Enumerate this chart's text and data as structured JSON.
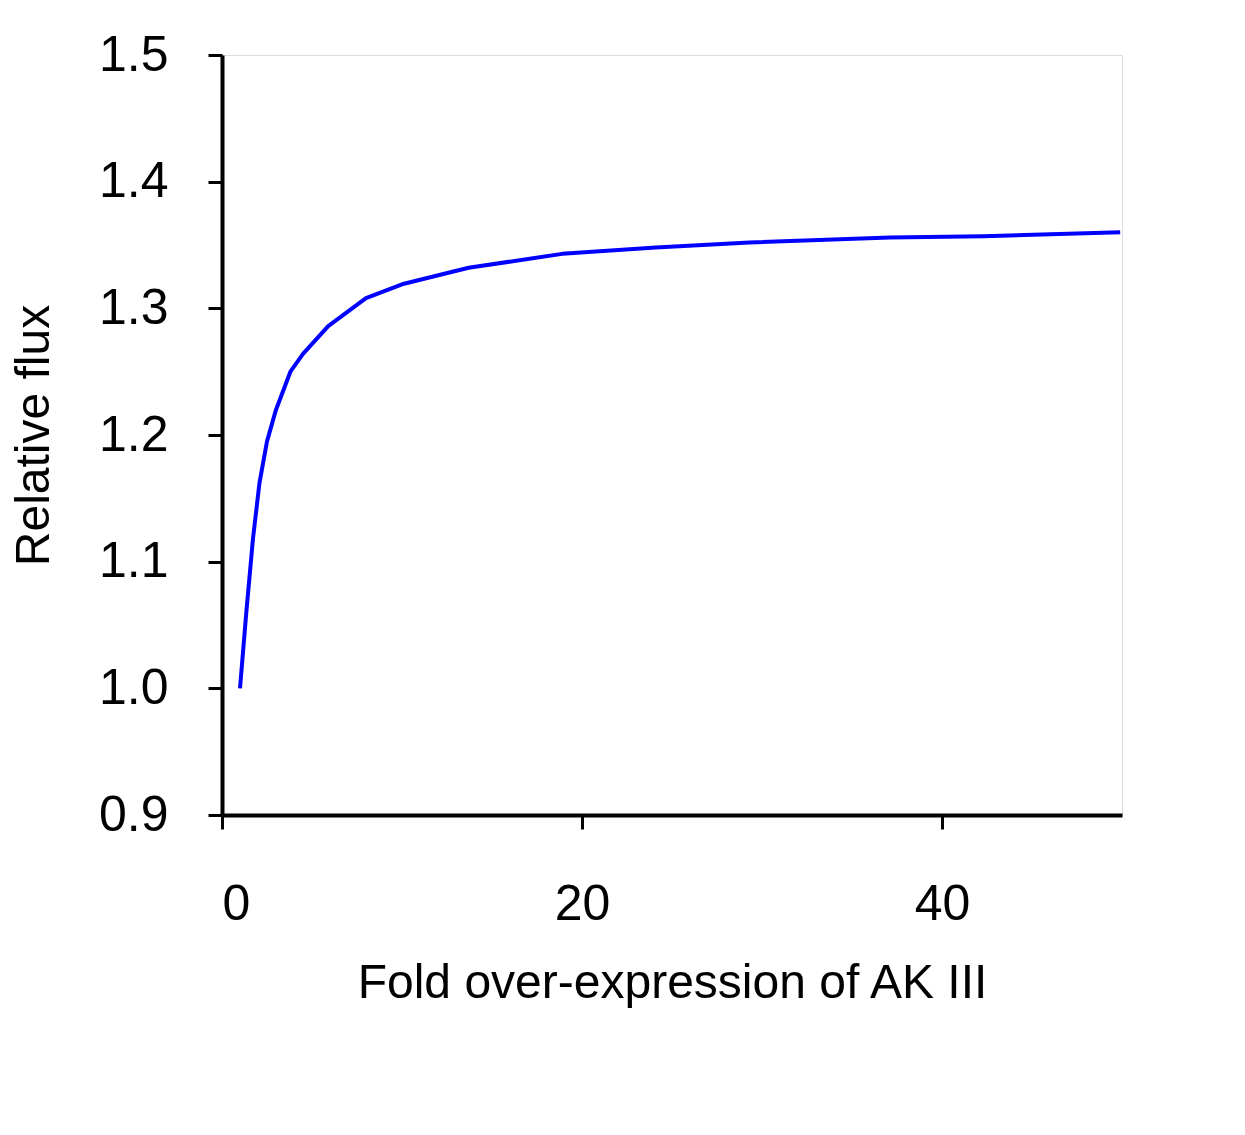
{
  "chart_data": {
    "type": "line",
    "xlabel": "Fold over-expression of AK III",
    "ylabel": "Relative flux",
    "x": [
      1.0,
      1.35,
      1.72,
      2.08,
      2.5,
      3.0,
      3.8,
      4.5,
      5.9,
      8,
      10,
      13.7,
      18.9,
      24.1,
      29.3,
      37.1,
      42.3,
      49.9
    ],
    "series": [
      {
        "color": "#0000ff",
        "values": [
          1.0,
          1.06,
          1.118,
          1.162,
          1.195,
          1.22,
          1.25,
          1.264,
          1.286,
          1.308,
          1.319,
          1.332,
          1.343,
          1.348,
          1.352,
          1.356,
          1.357,
          1.36
        ]
      }
    ],
    "xlim": [
      0,
      50
    ],
    "xticks": [
      0,
      20,
      40
    ],
    "ylim": [
      0.9,
      1.5
    ],
    "yticks": [
      0.9,
      {
        "value": 1.0,
        "label": "1.0"
      },
      1.1,
      1.2,
      1.3,
      1.4,
      1.5
    ],
    "grid": false,
    "legend": false,
    "marker": "none",
    "line_style": "solid"
  }
}
